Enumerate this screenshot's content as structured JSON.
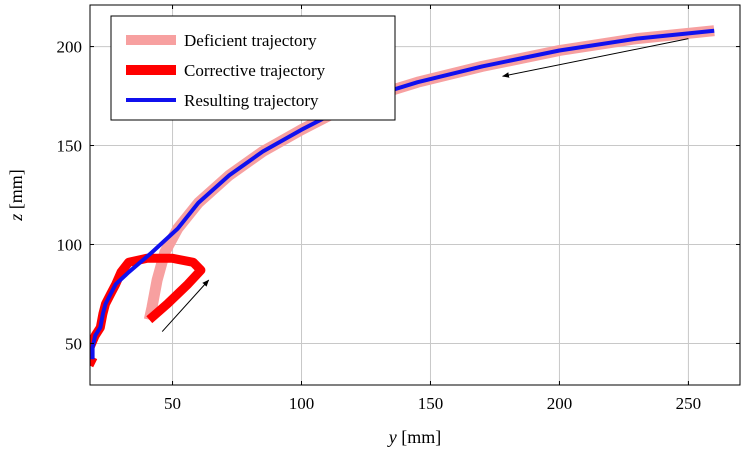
{
  "chart_data": {
    "type": "line",
    "xlim": [
      18,
      270
    ],
    "ylim": [
      29,
      221
    ],
    "xticks": [
      50,
      100,
      150,
      200,
      250
    ],
    "yticks": [
      50,
      100,
      150,
      200
    ],
    "grid": true,
    "legend_position": "top-left",
    "xlabel": {
      "var": "y",
      "unit": "[mm]"
    },
    "ylabel": {
      "var": "z",
      "unit": "[mm]"
    },
    "series": [
      {
        "name": "Deficient trajectory",
        "color": "#f7a0a0",
        "style": "thick",
        "points": [
          [
            260,
            208
          ],
          [
            230,
            204
          ],
          [
            200,
            198
          ],
          [
            170,
            190
          ],
          [
            145,
            182
          ],
          [
            130,
            176
          ],
          [
            115,
            168
          ],
          [
            100,
            158
          ],
          [
            85,
            147
          ],
          [
            72,
            135
          ],
          [
            60,
            121
          ],
          [
            52,
            108
          ],
          [
            47,
            96
          ],
          [
            44,
            82
          ],
          [
            42,
            68
          ],
          [
            41,
            62
          ]
        ]
      },
      {
        "name": "Corrective trajectory",
        "color": "#ff0000",
        "style": "thick",
        "points": [
          [
            41,
            62
          ],
          [
            48,
            70
          ],
          [
            56,
            80
          ],
          [
            61,
            87
          ],
          [
            58,
            91
          ],
          [
            50,
            93
          ],
          [
            40,
            93
          ],
          [
            33,
            91
          ],
          [
            30,
            86
          ],
          [
            28,
            80
          ],
          [
            26,
            75
          ],
          [
            24,
            70
          ],
          [
            23,
            65
          ],
          [
            22,
            58
          ],
          [
            20,
            54
          ],
          [
            18,
            48
          ],
          [
            17,
            42
          ],
          [
            20,
            40
          ]
        ]
      },
      {
        "name": "Resulting trajectory",
        "color": "#1010ee",
        "style": "solid",
        "points": [
          [
            260,
            208
          ],
          [
            230,
            204
          ],
          [
            200,
            198
          ],
          [
            170,
            190
          ],
          [
            145,
            182
          ],
          [
            130,
            176
          ],
          [
            115,
            168
          ],
          [
            100,
            158
          ],
          [
            85,
            147
          ],
          [
            72,
            135
          ],
          [
            60,
            121
          ],
          [
            52,
            108
          ],
          [
            42,
            96
          ],
          [
            33,
            86
          ],
          [
            28,
            80
          ],
          [
            26,
            75
          ],
          [
            24,
            70
          ],
          [
            23,
            65
          ],
          [
            22,
            58
          ],
          [
            20,
            54
          ],
          [
            19,
            48
          ],
          [
            19,
            42
          ]
        ]
      }
    ],
    "arrows": [
      {
        "from": [
          250,
          204
        ],
        "to": [
          178,
          185
        ]
      },
      {
        "from": [
          46,
          56
        ],
        "to": [
          64,
          82
        ]
      }
    ]
  }
}
